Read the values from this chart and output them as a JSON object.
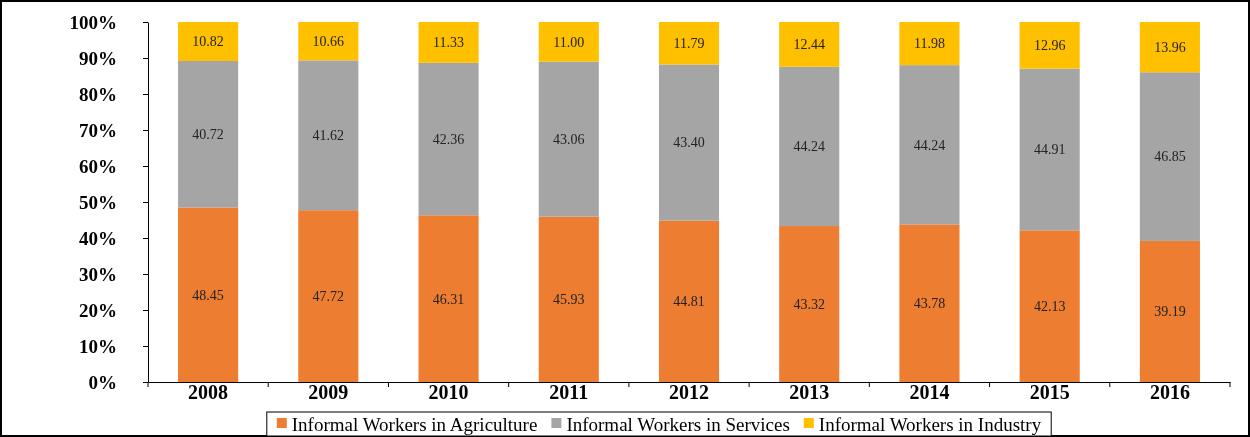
{
  "chart_data": {
    "type": "bar",
    "stacked": true,
    "categories": [
      "2008",
      "2009",
      "2010",
      "2011",
      "2012",
      "2013",
      "2014",
      "2015",
      "2016"
    ],
    "series": [
      {
        "name": "Informal Workers in Agriculture",
        "color": "#ed7d31",
        "values": [
          48.45,
          47.72,
          46.31,
          45.93,
          44.81,
          43.32,
          43.78,
          42.13,
          39.19
        ],
        "value_labels": [
          "48.45",
          "47.72",
          "46.31",
          "45.93",
          "44.81",
          "43.32",
          "43.78",
          "42.13",
          "39.19"
        ]
      },
      {
        "name": "Informal Workers in Services",
        "color": "#a5a5a5",
        "values": [
          40.72,
          41.62,
          42.36,
          43.06,
          43.4,
          44.24,
          44.24,
          44.91,
          46.85
        ],
        "value_labels": [
          "40.72",
          "41.62",
          "42.36",
          "43.06",
          "43.40",
          "44.24",
          "44.24",
          "44.91",
          "46.85"
        ]
      },
      {
        "name": "Informal Workers in Industry",
        "color": "#ffc000",
        "values": [
          10.82,
          10.66,
          11.33,
          11.0,
          11.79,
          12.44,
          11.98,
          12.96,
          13.96
        ],
        "value_labels": [
          "10.82",
          "10.66",
          "11.33",
          "11.00",
          "11.79",
          "12.44",
          "11.98",
          "12.96",
          "13.96"
        ]
      }
    ],
    "ylim": [
      0,
      100
    ],
    "yticks": [
      {
        "value": 0,
        "label": "0%"
      },
      {
        "value": 10,
        "label": "10%"
      },
      {
        "value": 20,
        "label": "20%"
      },
      {
        "value": 30,
        "label": "30%"
      },
      {
        "value": 40,
        "label": "40%"
      },
      {
        "value": 50,
        "label": "50%"
      },
      {
        "value": 60,
        "label": "60%"
      },
      {
        "value": 70,
        "label": "70%"
      },
      {
        "value": 80,
        "label": "80%"
      },
      {
        "value": 90,
        "label": "90%"
      },
      {
        "value": 100,
        "label": "100%"
      }
    ],
    "legend": "bottom",
    "grid": false
  }
}
